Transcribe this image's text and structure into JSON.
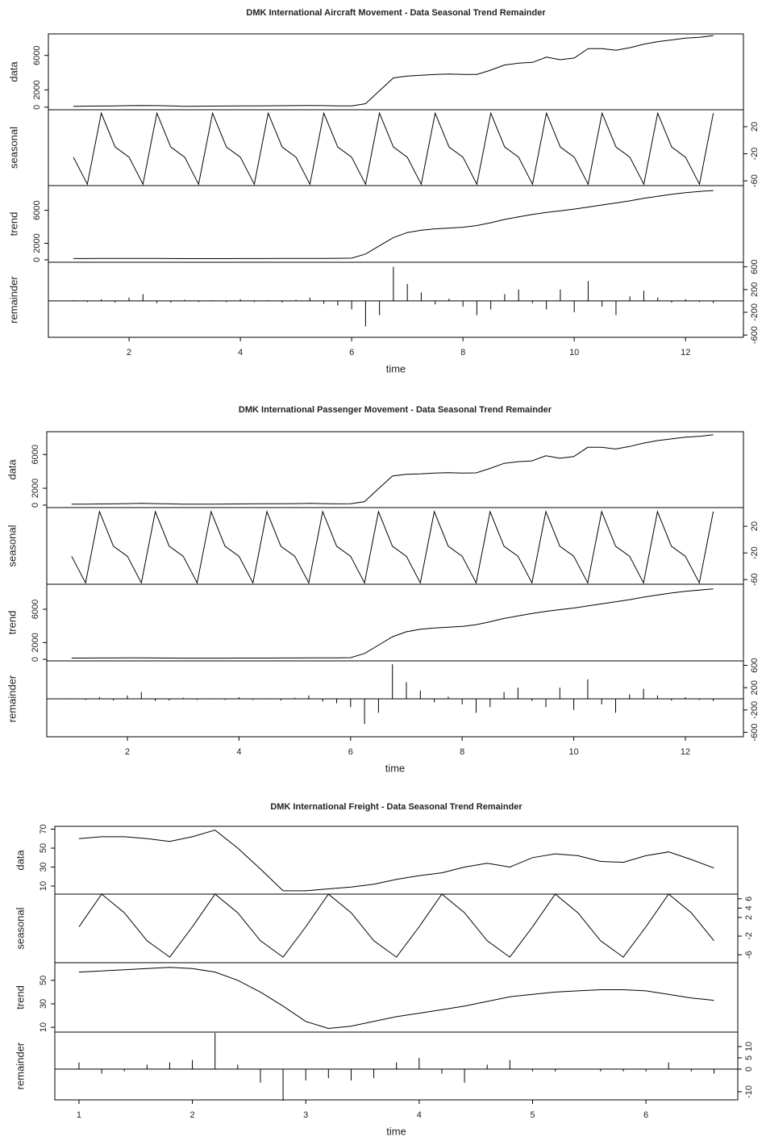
{
  "chart_data": [
    {
      "type": "stl",
      "title": "DMK International Aircraft Movement - Data Seasonal Trend Remainder",
      "xlabel": "time",
      "xlim": [
        0.55,
        13.04
      ],
      "xticks": [
        2,
        4,
        6,
        8,
        10,
        12
      ],
      "x": [
        1,
        1.25,
        1.5,
        1.75,
        2,
        2.25,
        2.5,
        2.75,
        3,
        3.25,
        3.5,
        3.75,
        4,
        4.25,
        4.5,
        4.75,
        5,
        5.25,
        5.5,
        5.75,
        6,
        6.25,
        6.5,
        6.75,
        7,
        7.25,
        7.5,
        7.75,
        8,
        8.25,
        8.5,
        8.75,
        9,
        9.25,
        9.5,
        9.75,
        10,
        10.25,
        10.5,
        10.75,
        11,
        11.25,
        11.5,
        11.75,
        12,
        12.25,
        12.5
      ],
      "panels": [
        {
          "name": "data",
          "kind": "line",
          "axis": "left",
          "ylim": [
            -300,
            8500
          ],
          "yticks": [
            0,
            2000,
            6000
          ],
          "values": [
            100,
            120,
            130,
            150,
            180,
            200,
            180,
            150,
            100,
            110,
            120,
            130,
            140,
            150,
            160,
            170,
            180,
            200,
            180,
            150,
            150,
            400,
            1900,
            3400,
            3600,
            3700,
            3800,
            3850,
            3800,
            3800,
            4300,
            4900,
            5100,
            5200,
            5800,
            5500,
            5700,
            6800,
            6800,
            6600,
            6900,
            7300,
            7600,
            7800,
            8000,
            8100,
            8300
          ]
        },
        {
          "name": "seasonal",
          "kind": "line",
          "axis": "right",
          "ylim": [
            -67,
            45
          ],
          "yticks": [
            20,
            -20,
            -60
          ],
          "values": [
            -25,
            -65,
            40,
            -10,
            -25,
            -65,
            40,
            -10,
            -25,
            -65,
            40,
            -10,
            -25,
            -65,
            40,
            -10,
            -25,
            -65,
            40,
            -10,
            -25,
            -65,
            40,
            -10,
            -25,
            -65,
            40,
            -10,
            -25,
            -65,
            40,
            -10,
            -25,
            -65,
            40,
            -10,
            -25,
            -65,
            40,
            -10,
            -25,
            -65,
            40,
            -10,
            -25,
            -65,
            40
          ]
        },
        {
          "name": "trend",
          "kind": "line",
          "axis": "left",
          "ylim": [
            -300,
            9000
          ],
          "yticks": [
            0,
            2000,
            6000
          ],
          "values": [
            150,
            150,
            160,
            160,
            170,
            170,
            160,
            150,
            140,
            140,
            140,
            140,
            150,
            150,
            150,
            160,
            160,
            170,
            170,
            180,
            200,
            700,
            1700,
            2700,
            3300,
            3600,
            3750,
            3850,
            3950,
            4150,
            4500,
            4900,
            5200,
            5500,
            5750,
            5950,
            6150,
            6400,
            6650,
            6900,
            7150,
            7450,
            7700,
            7950,
            8150,
            8300,
            8400
          ]
        },
        {
          "name": "remainder",
          "kind": "bar",
          "axis": "right",
          "ylim": [
            -640,
            680
          ],
          "yticks": [
            600,
            200,
            -200,
            -600
          ],
          "values": [
            10,
            -20,
            30,
            -30,
            60,
            120,
            -40,
            -30,
            20,
            -20,
            10,
            -20,
            30,
            -20,
            10,
            -30,
            20,
            60,
            -50,
            -80,
            -150,
            -450,
            -250,
            600,
            300,
            150,
            -60,
            40,
            -100,
            -250,
            -150,
            120,
            200,
            -40,
            -150,
            200,
            -200,
            350,
            -100,
            -250,
            80,
            180,
            60,
            -30,
            30,
            -20,
            -40
          ]
        }
      ]
    },
    {
      "type": "stl",
      "title": "DMK International Passenger Movement - Data Seasonal Trend Remainder",
      "xlabel": "time",
      "xlim": [
        0.555,
        13.04
      ],
      "xticks": [
        2,
        4,
        6,
        8,
        10,
        12
      ],
      "x": [
        1,
        1.25,
        1.5,
        1.75,
        2,
        2.25,
        2.5,
        2.75,
        3,
        3.25,
        3.5,
        3.75,
        4,
        4.25,
        4.5,
        4.75,
        5,
        5.25,
        5.5,
        5.75,
        6,
        6.25,
        6.5,
        6.75,
        7,
        7.25,
        7.5,
        7.75,
        8,
        8.25,
        8.5,
        8.75,
        9,
        9.25,
        9.5,
        9.75,
        10,
        10.25,
        10.5,
        10.75,
        11,
        11.25,
        11.5,
        11.75,
        12,
        12.25,
        12.5
      ],
      "panels": [
        {
          "name": "data",
          "kind": "line",
          "axis": "left",
          "ylim": [
            -290,
            8700
          ],
          "yticks": [
            0,
            2000,
            6000
          ],
          "values": [
            110,
            120,
            140,
            150,
            180,
            210,
            180,
            150,
            110,
            110,
            120,
            130,
            140,
            150,
            160,
            170,
            180,
            210,
            180,
            150,
            160,
            420,
            1950,
            3450,
            3650,
            3700,
            3800,
            3850,
            3800,
            3820,
            4350,
            4950,
            5150,
            5250,
            5850,
            5550,
            5750,
            6850,
            6850,
            6650,
            6950,
            7350,
            7650,
            7850,
            8050,
            8150,
            8350
          ]
        },
        {
          "name": "seasonal",
          "kind": "line",
          "axis": "right",
          "ylim": [
            -67,
            48
          ],
          "yticks": [
            20,
            -20,
            -60
          ],
          "values": [
            -25,
            -65,
            42,
            -10,
            -25,
            -65,
            42,
            -10,
            -25,
            -65,
            42,
            -10,
            -25,
            -65,
            42,
            -10,
            -25,
            -65,
            42,
            -10,
            -25,
            -65,
            42,
            -10,
            -25,
            -65,
            42,
            -10,
            -25,
            -65,
            42,
            -10,
            -25,
            -65,
            42,
            -10,
            -25,
            -65,
            42,
            -10,
            -25,
            -65,
            42,
            -10,
            -25,
            -65,
            42
          ]
        },
        {
          "name": "trend",
          "kind": "line",
          "axis": "left",
          "ylim": [
            -190,
            9000
          ],
          "yticks": [
            0,
            2000,
            6000
          ],
          "values": [
            150,
            150,
            160,
            160,
            170,
            170,
            160,
            150,
            140,
            140,
            140,
            140,
            150,
            150,
            150,
            160,
            160,
            170,
            170,
            180,
            200,
            700,
            1700,
            2700,
            3300,
            3600,
            3750,
            3850,
            3950,
            4150,
            4500,
            4900,
            5200,
            5500,
            5750,
            5950,
            6150,
            6400,
            6650,
            6900,
            7150,
            7450,
            7700,
            7950,
            8150,
            8300,
            8450
          ]
        },
        {
          "name": "remainder",
          "kind": "bar",
          "axis": "right",
          "ylim": [
            -680,
            680
          ],
          "yticks": [
            600,
            200,
            -200,
            -600
          ],
          "values": [
            10,
            -20,
            30,
            -30,
            60,
            120,
            -40,
            -30,
            20,
            -20,
            10,
            -20,
            30,
            -20,
            10,
            -30,
            20,
            60,
            -50,
            -80,
            -150,
            -450,
            -250,
            620,
            300,
            150,
            -60,
            40,
            -100,
            -250,
            -150,
            120,
            200,
            -40,
            -150,
            200,
            -200,
            350,
            -100,
            -250,
            80,
            180,
            60,
            -30,
            30,
            -20,
            -40
          ]
        }
      ]
    },
    {
      "type": "stl",
      "title": "DMK International Freight  - Data Seasonal Trend Remainder",
      "xlabel": "time",
      "xlim": [
        0.787,
        6.81
      ],
      "xticks": [
        1,
        2,
        3,
        4,
        5,
        6
      ],
      "x": [
        1,
        1.2,
        1.4,
        1.6,
        1.8,
        2,
        2.2,
        2.4,
        2.6,
        2.8,
        3,
        3.2,
        3.4,
        3.6,
        3.8,
        4,
        4.2,
        4.4,
        4.6,
        4.8,
        5,
        5.2,
        5.4,
        5.6,
        5.8,
        6,
        6.2,
        6.4,
        6.6
      ],
      "panels": [
        {
          "name": "data",
          "kind": "line",
          "axis": "left",
          "ylim": [
            1.5,
            73
          ],
          "yticks": [
            10,
            30,
            50,
            70
          ],
          "values": [
            60,
            62,
            62,
            60,
            57,
            62,
            69,
            50,
            28,
            5,
            5,
            7,
            9,
            12,
            17,
            21,
            24,
            30,
            34,
            30,
            40,
            44,
            42,
            36,
            35,
            42,
            46,
            38,
            29
          ]
        },
        {
          "name": "seasonal",
          "kind": "line",
          "axis": "right",
          "ylim": [
            -7.7,
            7
          ],
          "yticks": [
            -6,
            -2,
            2,
            4,
            6
          ],
          "values": [
            0,
            7,
            3,
            -3,
            -6.5,
            0,
            7,
            3,
            -3,
            -6.5,
            0,
            7,
            3,
            -3,
            -6.5,
            0,
            7,
            3,
            -3,
            -6.5,
            0,
            7,
            3,
            -3,
            -6.5,
            0,
            7,
            3,
            -3
          ]
        },
        {
          "name": "trend",
          "kind": "line",
          "axis": "left",
          "ylim": [
            5.9,
            65
          ],
          "yticks": [
            10,
            30,
            50
          ],
          "values": [
            57,
            58,
            59,
            60,
            61,
            60,
            57,
            50,
            40,
            28,
            15,
            9,
            11,
            15,
            19,
            22,
            25,
            28,
            32,
            36,
            38,
            40,
            41,
            42,
            42,
            41,
            38,
            35,
            33
          ]
        },
        {
          "name": "remainder",
          "kind": "bar",
          "axis": "right",
          "ylim": [
            -13.6,
            16.4
          ],
          "yticks": [
            -10,
            0,
            5,
            10
          ],
          "values": [
            3,
            -2,
            -1,
            2,
            3,
            4,
            16,
            2,
            -6,
            -14,
            -5,
            -4,
            -5,
            -4,
            3,
            5,
            -2,
            -6,
            2,
            4,
            -1,
            -1,
            0,
            -1,
            -1,
            -1,
            3,
            -1,
            -2
          ]
        }
      ]
    }
  ]
}
